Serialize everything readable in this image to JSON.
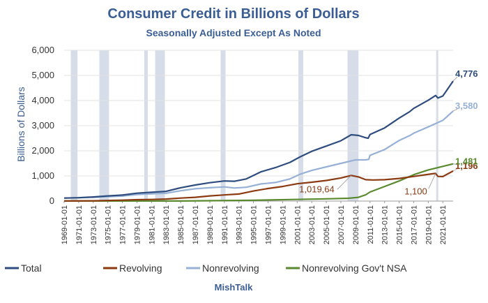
{
  "chart_data": {
    "type": "line",
    "title": "Consumer Credit in Billions of Dollars",
    "subtitle": "Seasonally Adjusted Except As Noted",
    "ylabel": "Billions of Dollars",
    "xlabel": "",
    "source": "MishTalk",
    "ylim": [
      0,
      6000
    ],
    "xlim": [
      "1969-01-01",
      "2022-06-01"
    ],
    "y_ticks": [
      "0",
      "1,000",
      "2,000",
      "3,000",
      "4,000",
      "5,000",
      "6,000"
    ],
    "x_ticks": [
      "1969-01-01",
      "1971-01-01",
      "1973-01-01",
      "1975-01-01",
      "1977-01-01",
      "1979-01-01",
      "1981-01-01",
      "1983-01-01",
      "1985-01-01",
      "1987-01-01",
      "1989-01-01",
      "1991-01-01",
      "1993-01-01",
      "1995-01-01",
      "1997-01-01",
      "1999-01-01",
      "2001-01-01",
      "2003-01-01",
      "2005-01-01",
      "2007-01-01",
      "2009-01-01",
      "2011-01-01",
      "2013-01-01",
      "2015-01-01",
      "2017-01-01",
      "2019-01-01",
      "2021-01-01"
    ],
    "grid": true,
    "legend_position": "bottom",
    "recessions": [
      [
        "1969-12-01",
        "1970-11-01"
      ],
      [
        "1973-11-01",
        "1975-03-01"
      ],
      [
        "1980-01-01",
        "1980-07-01"
      ],
      [
        "1981-07-01",
        "1982-11-01"
      ],
      [
        "1990-07-01",
        "1991-03-01"
      ],
      [
        "2001-03-01",
        "2001-11-01"
      ],
      [
        "2007-12-01",
        "2009-06-01"
      ],
      [
        "2020-02-01",
        "2020-04-01"
      ]
    ],
    "series": [
      {
        "name": "Total",
        "color": "#2e4d7e",
        "end_label": "4,776",
        "points": [
          [
            "1969-01-01",
            120
          ],
          [
            "1971-01-01",
            132
          ],
          [
            "1973-01-01",
            165
          ],
          [
            "1975-01-01",
            205
          ],
          [
            "1977-01-01",
            240
          ],
          [
            "1979-01-01",
            315
          ],
          [
            "1981-01-01",
            350
          ],
          [
            "1983-01-01",
            385
          ],
          [
            "1985-01-01",
            530
          ],
          [
            "1987-01-01",
            640
          ],
          [
            "1989-01-01",
            730
          ],
          [
            "1991-01-01",
            800
          ],
          [
            "1992-06-01",
            790
          ],
          [
            "1994-01-01",
            880
          ],
          [
            "1996-01-01",
            1160
          ],
          [
            "1998-01-01",
            1330
          ],
          [
            "2000-01-01",
            1540
          ],
          [
            "2001-06-01",
            1760
          ],
          [
            "2003-01-01",
            1980
          ],
          [
            "2005-01-01",
            2190
          ],
          [
            "2007-01-01",
            2400
          ],
          [
            "2008-06-01",
            2640
          ],
          [
            "2009-06-01",
            2610
          ],
          [
            "2010-06-01",
            2520
          ],
          [
            "2010-10-01",
            2500
          ],
          [
            "2011-01-01",
            2650
          ],
          [
            "2013-01-01",
            2910
          ],
          [
            "2015-01-01",
            3300
          ],
          [
            "2016-06-01",
            3550
          ],
          [
            "2017-01-01",
            3690
          ],
          [
            "2019-01-01",
            4010
          ],
          [
            "2020-01-01",
            4200
          ],
          [
            "2020-05-01",
            4100
          ],
          [
            "2021-01-01",
            4180
          ],
          [
            "2022-06-01",
            4776
          ]
        ]
      },
      {
        "name": "Revolving",
        "color": "#8b3a12",
        "end_label": "1,196",
        "points": [
          [
            "1969-01-01",
            2
          ],
          [
            "1973-01-01",
            10
          ],
          [
            "1977-01-01",
            35
          ],
          [
            "1979-01-01",
            55
          ],
          [
            "1981-01-01",
            65
          ],
          [
            "1983-01-01",
            80
          ],
          [
            "1985-01-01",
            120
          ],
          [
            "1987-01-01",
            150
          ],
          [
            "1989-01-01",
            205
          ],
          [
            "1991-01-01",
            245
          ],
          [
            "1993-01-01",
            280
          ],
          [
            "1995-01-01",
            400
          ],
          [
            "1997-01-01",
            500
          ],
          [
            "1999-01-01",
            580
          ],
          [
            "2001-01-01",
            690
          ],
          [
            "2003-01-01",
            750
          ],
          [
            "2005-01-01",
            820
          ],
          [
            "2007-01-01",
            920
          ],
          [
            "2008-06-01",
            1019.64
          ],
          [
            "2009-06-01",
            960
          ],
          [
            "2010-06-01",
            850
          ],
          [
            "2011-06-01",
            840
          ],
          [
            "2013-01-01",
            850
          ],
          [
            "2015-01-01",
            900
          ],
          [
            "2017-01-01",
            980
          ],
          [
            "2019-06-01",
            1080
          ],
          [
            "2020-01-01",
            1100
          ],
          [
            "2020-05-01",
            980
          ],
          [
            "2021-01-01",
            975
          ],
          [
            "2022-06-01",
            1196
          ]
        ]
      },
      {
        "name": "Nonrevolving",
        "color": "#97b0d6",
        "end_label": "3,580",
        "points": [
          [
            "1969-01-01",
            118
          ],
          [
            "1973-01-01",
            150
          ],
          [
            "1977-01-01",
            200
          ],
          [
            "1979-01-01",
            260
          ],
          [
            "1981-01-01",
            290
          ],
          [
            "1983-01-01",
            310
          ],
          [
            "1985-01-01",
            410
          ],
          [
            "1987-01-01",
            490
          ],
          [
            "1989-01-01",
            530
          ],
          [
            "1991-01-01",
            565
          ],
          [
            "1992-06-01",
            520
          ],
          [
            "1994-01-01",
            550
          ],
          [
            "1996-01-01",
            680
          ],
          [
            "1998-01-01",
            740
          ],
          [
            "2000-01-01",
            880
          ],
          [
            "2001-06-01",
            1070
          ],
          [
            "2003-01-01",
            1220
          ],
          [
            "2005-01-01",
            1360
          ],
          [
            "2007-01-01",
            1500
          ],
          [
            "2009-01-01",
            1640
          ],
          [
            "2010-06-01",
            1640
          ],
          [
            "2010-11-01",
            1660
          ],
          [
            "2011-01-01",
            1820
          ],
          [
            "2013-01-01",
            2050
          ],
          [
            "2015-01-01",
            2410
          ],
          [
            "2016-06-01",
            2600
          ],
          [
            "2017-01-01",
            2700
          ],
          [
            "2019-01-01",
            2950
          ],
          [
            "2021-01-01",
            3210
          ],
          [
            "2022-06-01",
            3580
          ]
        ]
      },
      {
        "name": "Nonrevolving Gov't NSA",
        "color": "#5a8a2f",
        "end_label": "1,481",
        "points": [
          [
            "1969-01-01",
            2
          ],
          [
            "1985-01-01",
            3
          ],
          [
            "1995-01-01",
            30
          ],
          [
            "2000-01-01",
            60
          ],
          [
            "2005-01-01",
            90
          ],
          [
            "2008-01-01",
            110
          ],
          [
            "2009-06-01",
            150
          ],
          [
            "2010-06-01",
            250
          ],
          [
            "2011-01-01",
            360
          ],
          [
            "2013-01-01",
            580
          ],
          [
            "2015-01-01",
            800
          ],
          [
            "2017-01-01",
            1050
          ],
          [
            "2019-01-01",
            1240
          ],
          [
            "2021-01-01",
            1380
          ],
          [
            "2022-06-01",
            1481
          ]
        ]
      }
    ],
    "annotations": [
      {
        "text": "1,019,64",
        "series": "Revolving",
        "at": "2008-06-01",
        "value": 1019.64
      },
      {
        "text": "1,100",
        "series": "Revolving",
        "at": "2020-01-01",
        "value": 1100
      }
    ]
  }
}
